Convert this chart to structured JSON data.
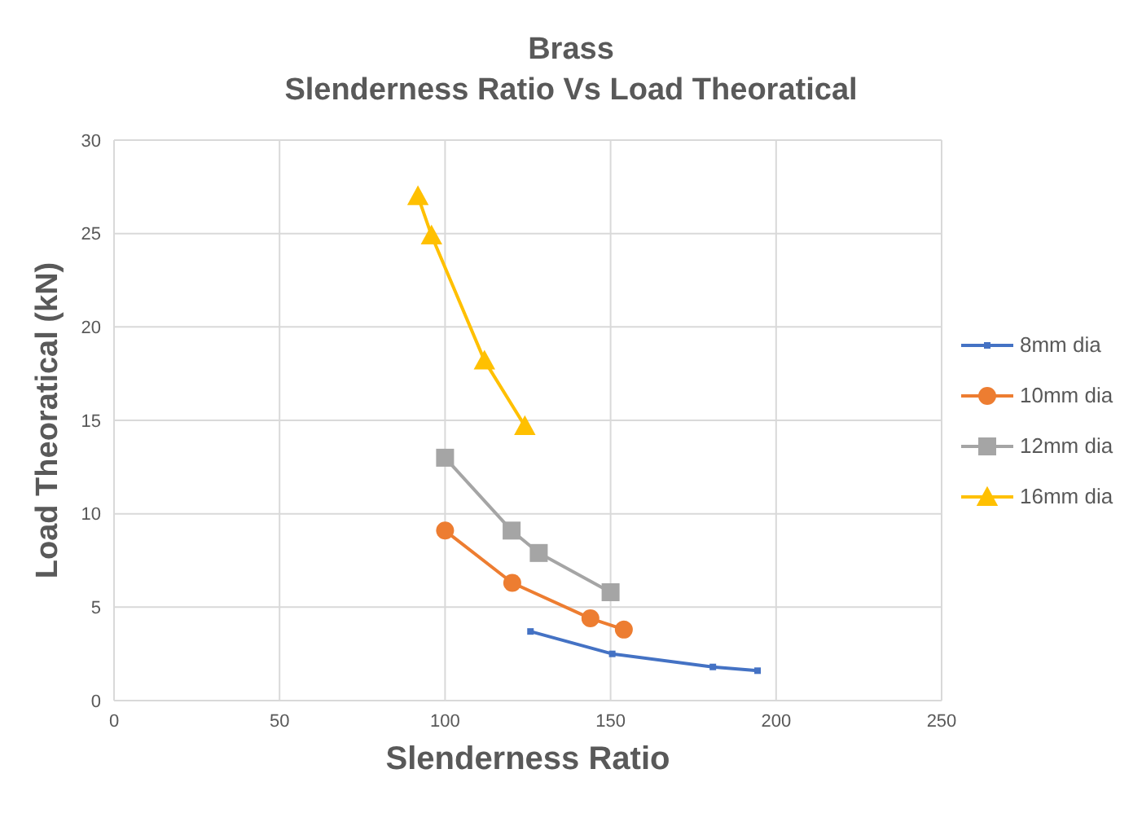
{
  "chart_data": {
    "type": "line",
    "title": "Brass",
    "subtitle": "Slenderness Ratio Vs Load Theoratical",
    "xlabel": "Slenderness Ratio",
    "ylabel": "Load Theoratical (kN)",
    "xlim": [
      0,
      250
    ],
    "xticks": [
      0,
      50,
      100,
      150,
      200,
      250
    ],
    "ylim": [
      0,
      30
    ],
    "yticks": [
      0,
      5,
      10,
      15,
      20,
      25,
      30
    ],
    "grid": true,
    "legend": "right",
    "series": [
      {
        "name": "8mm dia",
        "color": "#4472c4",
        "marker": "square",
        "x": [
          125.8,
          150.5,
          180.9,
          194.4
        ],
        "values": [
          3.7,
          2.5,
          1.8,
          1.6
        ]
      },
      {
        "name": "10mm dia",
        "color": "#ed7d31",
        "marker": "circle",
        "x": [
          100,
          120.3,
          143.9,
          154
        ],
        "values": [
          9.1,
          6.3,
          4.4,
          3.8
        ]
      },
      {
        "name": "12mm dia",
        "color": "#a5a5a5",
        "marker": "square",
        "x": [
          100,
          120.1,
          128.3,
          150
        ],
        "values": [
          13,
          9.1,
          7.9,
          5.8
        ]
      },
      {
        "name": "16mm dia",
        "color": "#ffc000",
        "marker": "triangle",
        "x": [
          91.8,
          95.9,
          111.9,
          124.1
        ],
        "values": [
          27,
          24.9,
          18.2,
          14.7
        ]
      }
    ]
  }
}
